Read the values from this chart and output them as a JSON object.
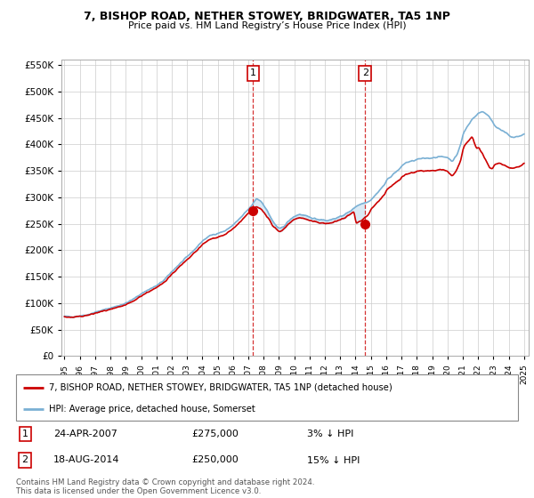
{
  "title1": "7, BISHOP ROAD, NETHER STOWEY, BRIDGWATER, TA5 1NP",
  "title2": "Price paid vs. HM Land Registry’s House Price Index (HPI)",
  "legend_line1": "7, BISHOP ROAD, NETHER STOWEY, BRIDGWATER, TA5 1NP (detached house)",
  "legend_line2": "HPI: Average price, detached house, Somerset",
  "sale1_date": "24-APR-2007",
  "sale1_price": 275000,
  "sale1_hpi_diff": "3% ↓ HPI",
  "sale1_year": 2007.31,
  "sale2_date": "18-AUG-2014",
  "sale2_price": 250000,
  "sale2_hpi_diff": "15% ↓ HPI",
  "sale2_year": 2014.63,
  "ylim": [
    0,
    560000
  ],
  "yticks": [
    0,
    50000,
    100000,
    150000,
    200000,
    250000,
    300000,
    350000,
    400000,
    450000,
    500000,
    550000
  ],
  "xlim_start": 1994.8,
  "xlim_end": 2025.3,
  "background_color": "#ffffff",
  "plot_bg_color": "#ffffff",
  "grid_color": "#cccccc",
  "red_color": "#cc0000",
  "blue_color": "#7ab0d4",
  "fill_color": "#daeaf5",
  "footnote": "Contains HM Land Registry data © Crown copyright and database right 2024.\nThis data is licensed under the Open Government Licence v3.0."
}
